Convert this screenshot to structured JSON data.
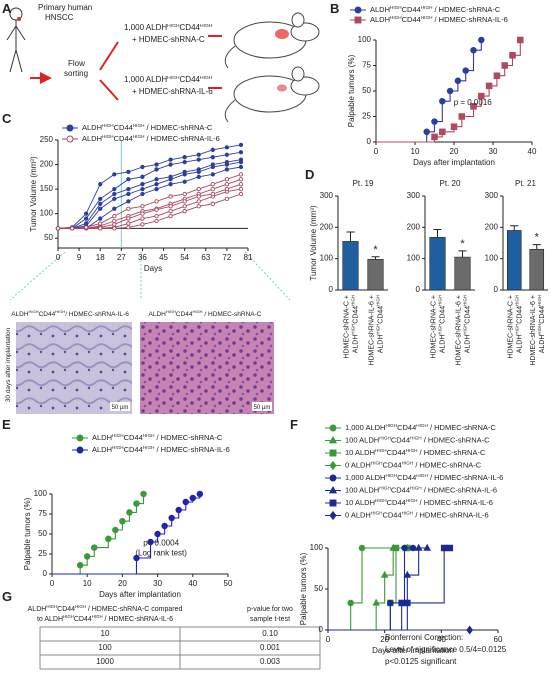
{
  "panel_labels": [
    "A",
    "B",
    "C",
    "D",
    "E",
    "F",
    "G"
  ],
  "diagram": {
    "source": [
      "Primary human",
      "HNSCC"
    ],
    "sorting": [
      "Flow",
      "sorting"
    ],
    "groups": [
      [
        "1,000 ALDHHIGHCD44HIGH",
        "+ HDMEC-shRNA-C"
      ],
      [
        "1,000 ALDHHIGHCD44HIGH",
        "+ HDMEC-shRNA-IL-6"
      ]
    ]
  },
  "histology": {
    "side_label": "30 days after implantation",
    "images": [
      {
        "label": "ALDHHIGHCD44HIGH/ HDMEC-shRNA-IL-6",
        "scale": "50 µm"
      },
      {
        "label": "ALDHHIGHCD44HIGH / HDMEC-shRNA-C",
        "scale": "50 µm"
      }
    ]
  },
  "table": {
    "header": [
      [
        "ALDHHIGHCD44HIGH / HDMEC-shRNA-C compared",
        "to ALDHHIGHCD44HIGH / HDMEC-shRNA-IL-6"
      ],
      [
        "p-value for two",
        "sample t-test"
      ]
    ],
    "rows": [
      [
        "10",
        "0.10"
      ],
      [
        "100",
        "0.001"
      ],
      [
        "1000",
        "0.003"
      ]
    ]
  },
  "note": [
    "Bonferroni Correction:",
    "Level of significance 0.5/4=0.0125",
    "p<0.0125 significant"
  ],
  "chart_data": [
    {
      "type": "step",
      "ylabel": "Palpable tumors (%)",
      "xlabel": "Days after implantation",
      "annotation": [
        "p = 0.0016"
      ],
      "xlim": [
        0,
        40
      ],
      "xticks": [
        0,
        10,
        20,
        30,
        40
      ],
      "ylim": [
        0,
        100
      ],
      "yticks": [
        0,
        25,
        50,
        75,
        100
      ],
      "series": [
        {
          "name": "ALDHHIGHCD44HIGH / HDMEC-shRNA-C",
          "color": "#2b3f9e",
          "marker": "circle",
          "x": [
            0,
            13,
            15,
            17,
            19,
            21,
            23,
            25,
            27
          ],
          "values": [
            0,
            10,
            20,
            40,
            50,
            60,
            70,
            90,
            100
          ]
        },
        {
          "name": "ALDHHIGHCD44HIGH / HDMEC-shRNA-IL-6",
          "color": "#b0485e",
          "marker": "square",
          "x": [
            0,
            15,
            17,
            20,
            22,
            25,
            27,
            29,
            31,
            33,
            35,
            37
          ],
          "values": [
            0,
            5,
            10,
            15,
            25,
            35,
            45,
            55,
            65,
            75,
            85,
            100
          ]
        }
      ]
    },
    {
      "type": "lines",
      "xlabel": "Days",
      "ylabel": "Tumor Volume (mm³)",
      "xlim": [
        0,
        81
      ],
      "xticks": [
        0,
        9,
        18,
        27,
        36,
        45,
        54,
        63,
        72,
        81
      ],
      "ylim": [
        30,
        250
      ],
      "yticks": [
        50,
        100,
        150,
        200,
        250
      ],
      "reference_lines": {
        "x": 27,
        "y": 70
      },
      "x": [
        0,
        6,
        12,
        18,
        24,
        30,
        36,
        42,
        48,
        54,
        60,
        66,
        72,
        78
      ],
      "series": [
        {
          "name": "ALDHHIGHCD44HIGH / HDMEC-shRNA-C",
          "color": "#2b3f9e",
          "marker": "circle",
          "curves": [
            [
              70,
              70,
              90,
              130,
              150,
              170,
              175,
              190,
              200,
              205,
              210,
              215,
              220,
              225
            ],
            [
              70,
              72,
              100,
              160,
              180,
              185,
              195,
              200,
              210,
              215,
              220,
              230,
              235,
              240
            ],
            [
              70,
              70,
              75,
              110,
              130,
              140,
              150,
              160,
              170,
              180,
              185,
              195,
              200,
              205
            ],
            [
              70,
              70,
              70,
              90,
              110,
              125,
              140,
              150,
              160,
              165,
              175,
              180,
              190,
              195
            ],
            [
              70,
              70,
              80,
              120,
              140,
              150,
              160,
              170,
              175,
              185,
              190,
              200,
              205,
              210
            ]
          ]
        },
        {
          "name": "ALDHHIGHCD44HIGH / HDMEC-shRNA-IL-6",
          "color": "#a8465a",
          "marker": "circle-open",
          "curves": [
            [
              70,
              70,
              70,
              75,
              85,
              95,
              105,
              110,
              120,
              130,
              140,
              150,
              160,
              170
            ],
            [
              70,
              70,
              70,
              70,
              72,
              80,
              90,
              95,
              105,
              115,
              125,
              135,
              145,
              150
            ],
            [
              70,
              70,
              70,
              72,
              78,
              90,
              100,
              108,
              115,
              125,
              135,
              140,
              150,
              160
            ],
            [
              70,
              70,
              70,
              70,
              70,
              72,
              78,
              85,
              95,
              105,
              115,
              120,
              130,
              140
            ],
            [
              70,
              70,
              72,
              80,
              95,
              110,
              115,
              125,
              135,
              140,
              150,
              160,
              170,
              180
            ]
          ]
        }
      ]
    },
    {
      "type": "bar",
      "title": "Pt. 19",
      "ylabel": "Tumor Volume (mm³)",
      "ylim": [
        0,
        300
      ],
      "yticks": [
        0,
        100,
        200,
        300
      ],
      "categories": [
        [
          "HDMEC-shRNA-C +",
          "ALDHHIGHCD44HIGH"
        ],
        [
          "HDMEC-shRNA-IL-6 +",
          "ALDHHIGHCD44HIGH"
        ]
      ],
      "colors": [
        "#1f5fa0",
        "#6b6b6b"
      ],
      "values": [
        155,
        98
      ],
      "errors": [
        30,
        8
      ],
      "annotation": "*"
    },
    {
      "type": "bar",
      "title": "Pt. 20",
      "ylim": [
        0,
        300
      ],
      "yticks": [
        0,
        100,
        200,
        300
      ],
      "categories": [
        [
          "HDMEC-shRNA-C +",
          "ALDHHIGHCD44HIGH"
        ],
        [
          "HDMEC-shRNA-IL-6 +",
          "ALDHHIGHCD44HIGH"
        ]
      ],
      "colors": [
        "#1f5fa0",
        "#6b6b6b"
      ],
      "values": [
        168,
        105
      ],
      "errors": [
        25,
        20
      ],
      "annotation": "*"
    },
    {
      "type": "bar",
      "title": "Pt. 21",
      "ylim": [
        0,
        300
      ],
      "yticks": [
        0,
        100,
        200,
        300
      ],
      "categories": [
        [
          "HDMEC-shRNA-C +",
          "ALDHHIGHCD44HIGH"
        ],
        [
          "HDMEC-shRNA-IL-6 +",
          "ALDHHIGHCD44HIGH"
        ]
      ],
      "colors": [
        "#1f5fa0",
        "#6b6b6b"
      ],
      "values": [
        190,
        130
      ],
      "errors": [
        15,
        15
      ],
      "annotation": "*"
    },
    {
      "type": "step",
      "ylabel": "Palpable tumors (%)",
      "xlabel": "Days after implantation",
      "annotation": [
        "p= 0.0004",
        "(Log rank test)"
      ],
      "xlim": [
        0,
        50
      ],
      "xticks": [
        0,
        10,
        20,
        30,
        40,
        50
      ],
      "ylim": [
        0,
        100
      ],
      "yticks": [
        0,
        25,
        50,
        75,
        100
      ],
      "series": [
        {
          "name": "ALDHHIGHCD44HIGH / HDMEC-shRNA-C",
          "color": "#3a9a3a",
          "marker": "circle",
          "x": [
            0,
            8,
            10,
            12,
            16,
            18,
            20,
            22,
            24,
            26
          ],
          "values": [
            0,
            11,
            22,
            33,
            44,
            55,
            66,
            77,
            88,
            100
          ]
        },
        {
          "name": "ALDHHIGHCD44HIGH / HDMEC-shRNA-IL-6",
          "color": "#2323b0",
          "marker": "circle",
          "x": [
            0,
            24,
            28,
            30,
            32,
            34,
            36,
            38,
            40,
            42
          ],
          "values": [
            0,
            20,
            40,
            50,
            60,
            70,
            80,
            90,
            95,
            100
          ]
        }
      ]
    },
    {
      "type": "step",
      "ylabel": "Palpable tumors (%)",
      "xlabel": "Days after implantation",
      "xlim": [
        0,
        60
      ],
      "xticks": [
        0,
        20,
        40,
        60
      ],
      "ylim": [
        0,
        100
      ],
      "yticks": [
        0,
        50,
        100
      ],
      "series": [
        {
          "name": "1,000 ALDHHIGHCD44HIGH / HDMEC-shRNA-C",
          "color": "#3a9a3a",
          "marker": "circle",
          "x": [
            0,
            8,
            12,
            28
          ],
          "values": [
            0,
            33,
            100,
            100
          ]
        },
        {
          "name": "100 ALDHHIGHCD44HIGH / HDMEC-shRNA-C",
          "color": "#3a9a3a",
          "marker": "triangle",
          "x": [
            0,
            17,
            20,
            23,
            28
          ],
          "values": [
            0,
            33,
            67,
            100,
            100
          ]
        },
        {
          "name": "10 ALDHHIGHCD44HIGH / HDMEC-shRNA-C",
          "color": "#3a9a3a",
          "marker": "square",
          "x": [
            0,
            22,
            24,
            28
          ],
          "values": [
            0,
            33,
            100,
            100
          ]
        },
        {
          "name": "0 ALDHHIGHCD44HIGH / HDMEC-shRNA-C",
          "color": "#3a9a3a",
          "marker": "diamond",
          "x": [
            0,
            50
          ],
          "values": [
            0,
            0
          ]
        },
        {
          "name": "1,000 ALDHHIGHCD44HIGH / HDMEC-shRNA-IL-6",
          "color": "#1c2a96",
          "marker": "circle",
          "x": [
            0,
            22,
            27,
            30
          ],
          "values": [
            0,
            33,
            100,
            100
          ]
        },
        {
          "name": "100 ALDHHIGHCD44HIGH / HDMEC-shRNA-IL-6",
          "color": "#1c2a96",
          "marker": "triangle",
          "x": [
            0,
            28,
            32,
            35
          ],
          "values": [
            0,
            67,
            100,
            100
          ]
        },
        {
          "name": "10 ALDHHIGHCD44HIGH / HDMEC-shRNA-IL-6",
          "color": "#1c2a96",
          "marker": "square",
          "x": [
            0,
            26,
            28,
            41,
            43
          ],
          "values": [
            0,
            33,
            33,
            100,
            100
          ]
        },
        {
          "name": "0 ALDHHIGHCD44HIGH / HDMEC-shRNA-IL-6",
          "color": "#1c2a96",
          "marker": "diamond",
          "x": [
            0,
            50
          ],
          "values": [
            0,
            0
          ]
        }
      ]
    }
  ]
}
